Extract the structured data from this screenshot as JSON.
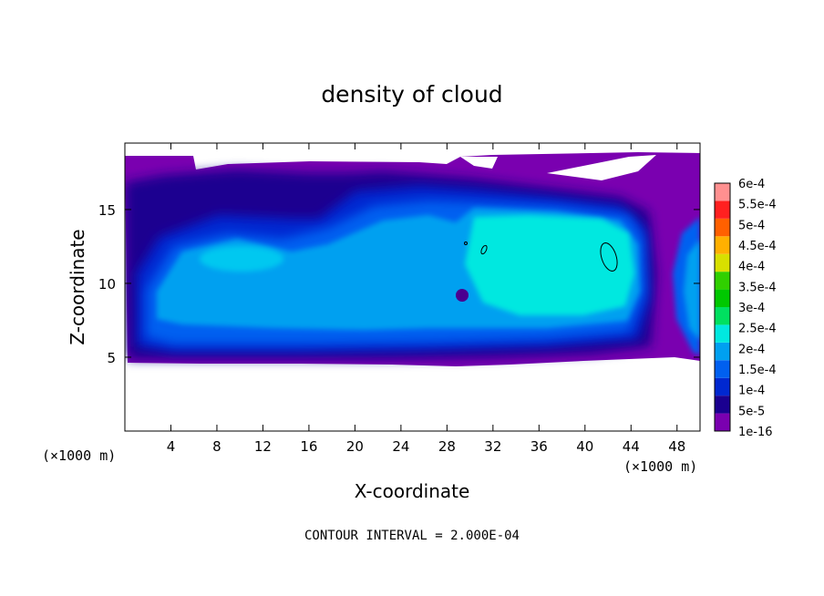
{
  "chart_data": {
    "type": "heatmap",
    "title": "density of cloud",
    "xlabel": "X-coordinate",
    "ylabel": "Z-coordinate",
    "x_unit": "(×1000 m)",
    "y_unit": "(×1000 m)",
    "xlim": [
      0,
      50
    ],
    "ylim": [
      0,
      19.5
    ],
    "x_ticks": [
      4,
      8,
      12,
      16,
      20,
      24,
      28,
      32,
      36,
      40,
      44,
      48
    ],
    "y_ticks": [
      5,
      10,
      15
    ],
    "footnote": "CONTOUR INTERVAL = 2.000E-04",
    "colorbar": {
      "labels": [
        "1e-16",
        "5e-5",
        "1e-4",
        "1.5e-4",
        "2e-4",
        "2.5e-4",
        "3e-4",
        "3.5e-4",
        "4e-4",
        "4.5e-4",
        "5e-4",
        "5.5e-4",
        "6e-4"
      ],
      "colors": [
        "#7a00b0",
        "#1a0090",
        "#0028d0",
        "#0060f0",
        "#00a0f0",
        "#00e8e0",
        "#00e060",
        "#00c800",
        "#30d000",
        "#d8e000",
        "#ffb000",
        "#ff6000",
        "#ff2020",
        "#ff9090"
      ]
    },
    "cloud_region": {
      "x": [
        0,
        50
      ],
      "z": [
        4.8,
        19
      ]
    },
    "max_density_region": {
      "x": [
        29,
        46
      ],
      "z": [
        7.5,
        16
      ],
      "approx_value": "2e-4"
    }
  }
}
